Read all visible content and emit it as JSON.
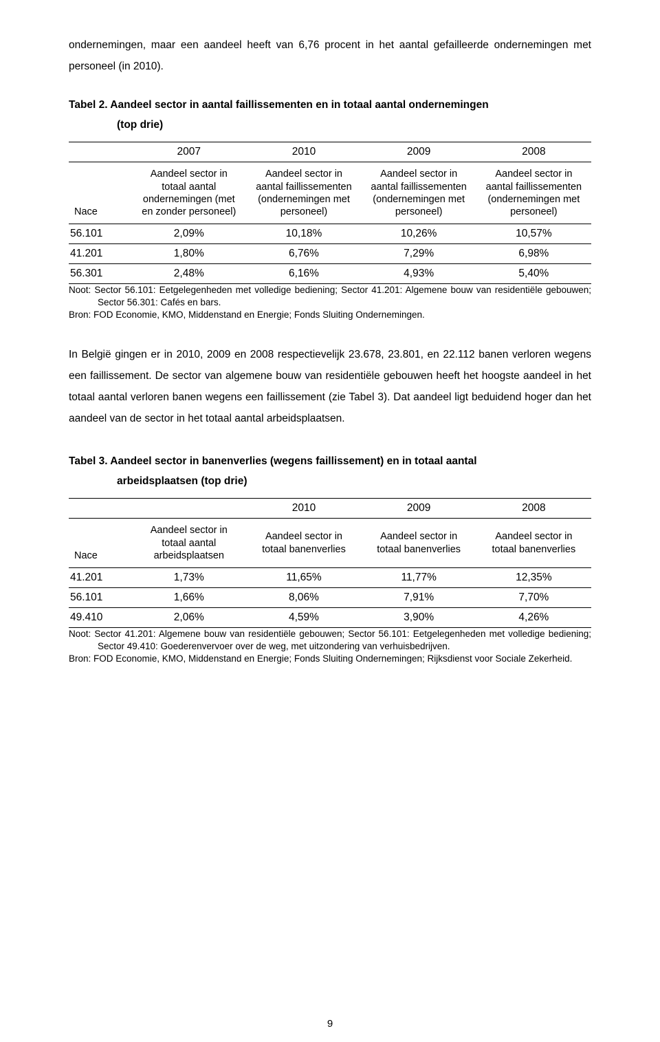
{
  "intro_para": "ondernemingen, maar een aandeel heeft van 6,76 procent in het aantal gefailleerde ondernemingen met personeel (in 2010).",
  "table2": {
    "caption_prefix": "Tabel 2.",
    "caption_line1": "Tabel 2. Aandeel sector in aantal faillissementen en in totaal aantal ondernemingen",
    "caption_line2": "(top drie)",
    "years": [
      "2007",
      "2010",
      "2009",
      "2008"
    ],
    "nace_label": "Nace",
    "col_headers": [
      "Aandeel sector in totaal aantal ondernemingen (met en zonder personeel)",
      "Aandeel sector in aantal faillissementen (ondernemingen met personeel)",
      "Aandeel sector in aantal faillissementen (ondernemingen met personeel)",
      "Aandeel sector in aantal faillissementen (ondernemingen met personeel)"
    ],
    "rows": [
      {
        "nace": "56.101",
        "v": [
          "2,09%",
          "10,18%",
          "10,26%",
          "10,57%"
        ]
      },
      {
        "nace": "41.201",
        "v": [
          "1,80%",
          "6,76%",
          "7,29%",
          "6,98%"
        ]
      },
      {
        "nace": "56.301",
        "v": [
          "2,48%",
          "6,16%",
          "4,93%",
          "5,40%"
        ]
      }
    ],
    "noot": "Noot: Sector 56.101: Eetgelegenheden met volledige bediening; Sector 41.201: Algemene bouw van residentiële gebouwen; Sector 56.301: Cafés en bars.",
    "bron": "Bron: FOD Economie, KMO, Middenstand en Energie; Fonds Sluiting Ondernemingen."
  },
  "mid_para": "In België gingen er in 2010, 2009 en 2008 respectievelijk 23.678, 23.801, en 22.112 banen verloren wegens een faillissement. De sector van algemene bouw van residentiële gebouwen heeft het hoogste aandeel in het totaal aantal verloren banen wegens een faillissement (zie Tabel 3). Dat aandeel ligt beduidend hoger dan het aandeel van de sector in het totaal aantal arbeidsplaatsen.",
  "table3": {
    "caption_line1": "Tabel 3. Aandeel sector in banenverlies (wegens faillissement) en in totaal aantal",
    "caption_line2": "arbeidsplaatsen (top drie)",
    "years": [
      "2010",
      "2009",
      "2008"
    ],
    "nace_label": "Nace",
    "col_headers": [
      "Aandeel sector in totaal aantal arbeidsplaatsen",
      "Aandeel sector in totaal banenverlies",
      "Aandeel sector in totaal banenverlies",
      "Aandeel sector in totaal banenverlies"
    ],
    "rows": [
      {
        "nace": "41.201",
        "v": [
          "1,73%",
          "11,65%",
          "11,77%",
          "12,35%"
        ]
      },
      {
        "nace": "56.101",
        "v": [
          "1,66%",
          "8,06%",
          "7,91%",
          "7,70%"
        ]
      },
      {
        "nace": "49.410",
        "v": [
          "2,06%",
          "4,59%",
          "3,90%",
          "4,26%"
        ]
      }
    ],
    "noot": "Noot: Sector 41.201: Algemene bouw van residentiële gebouwen; Sector 56.101: Eetgelegenheden met volledige bediening; Sector 49.410: Goederenvervoer over de weg, met uitzondering van verhuisbedrijven.",
    "bron": "Bron: FOD Economie, KMO, Middenstand en Energie; Fonds Sluiting Ondernemingen; Rijksdienst voor Sociale Zekerheid."
  },
  "page_number": "9"
}
